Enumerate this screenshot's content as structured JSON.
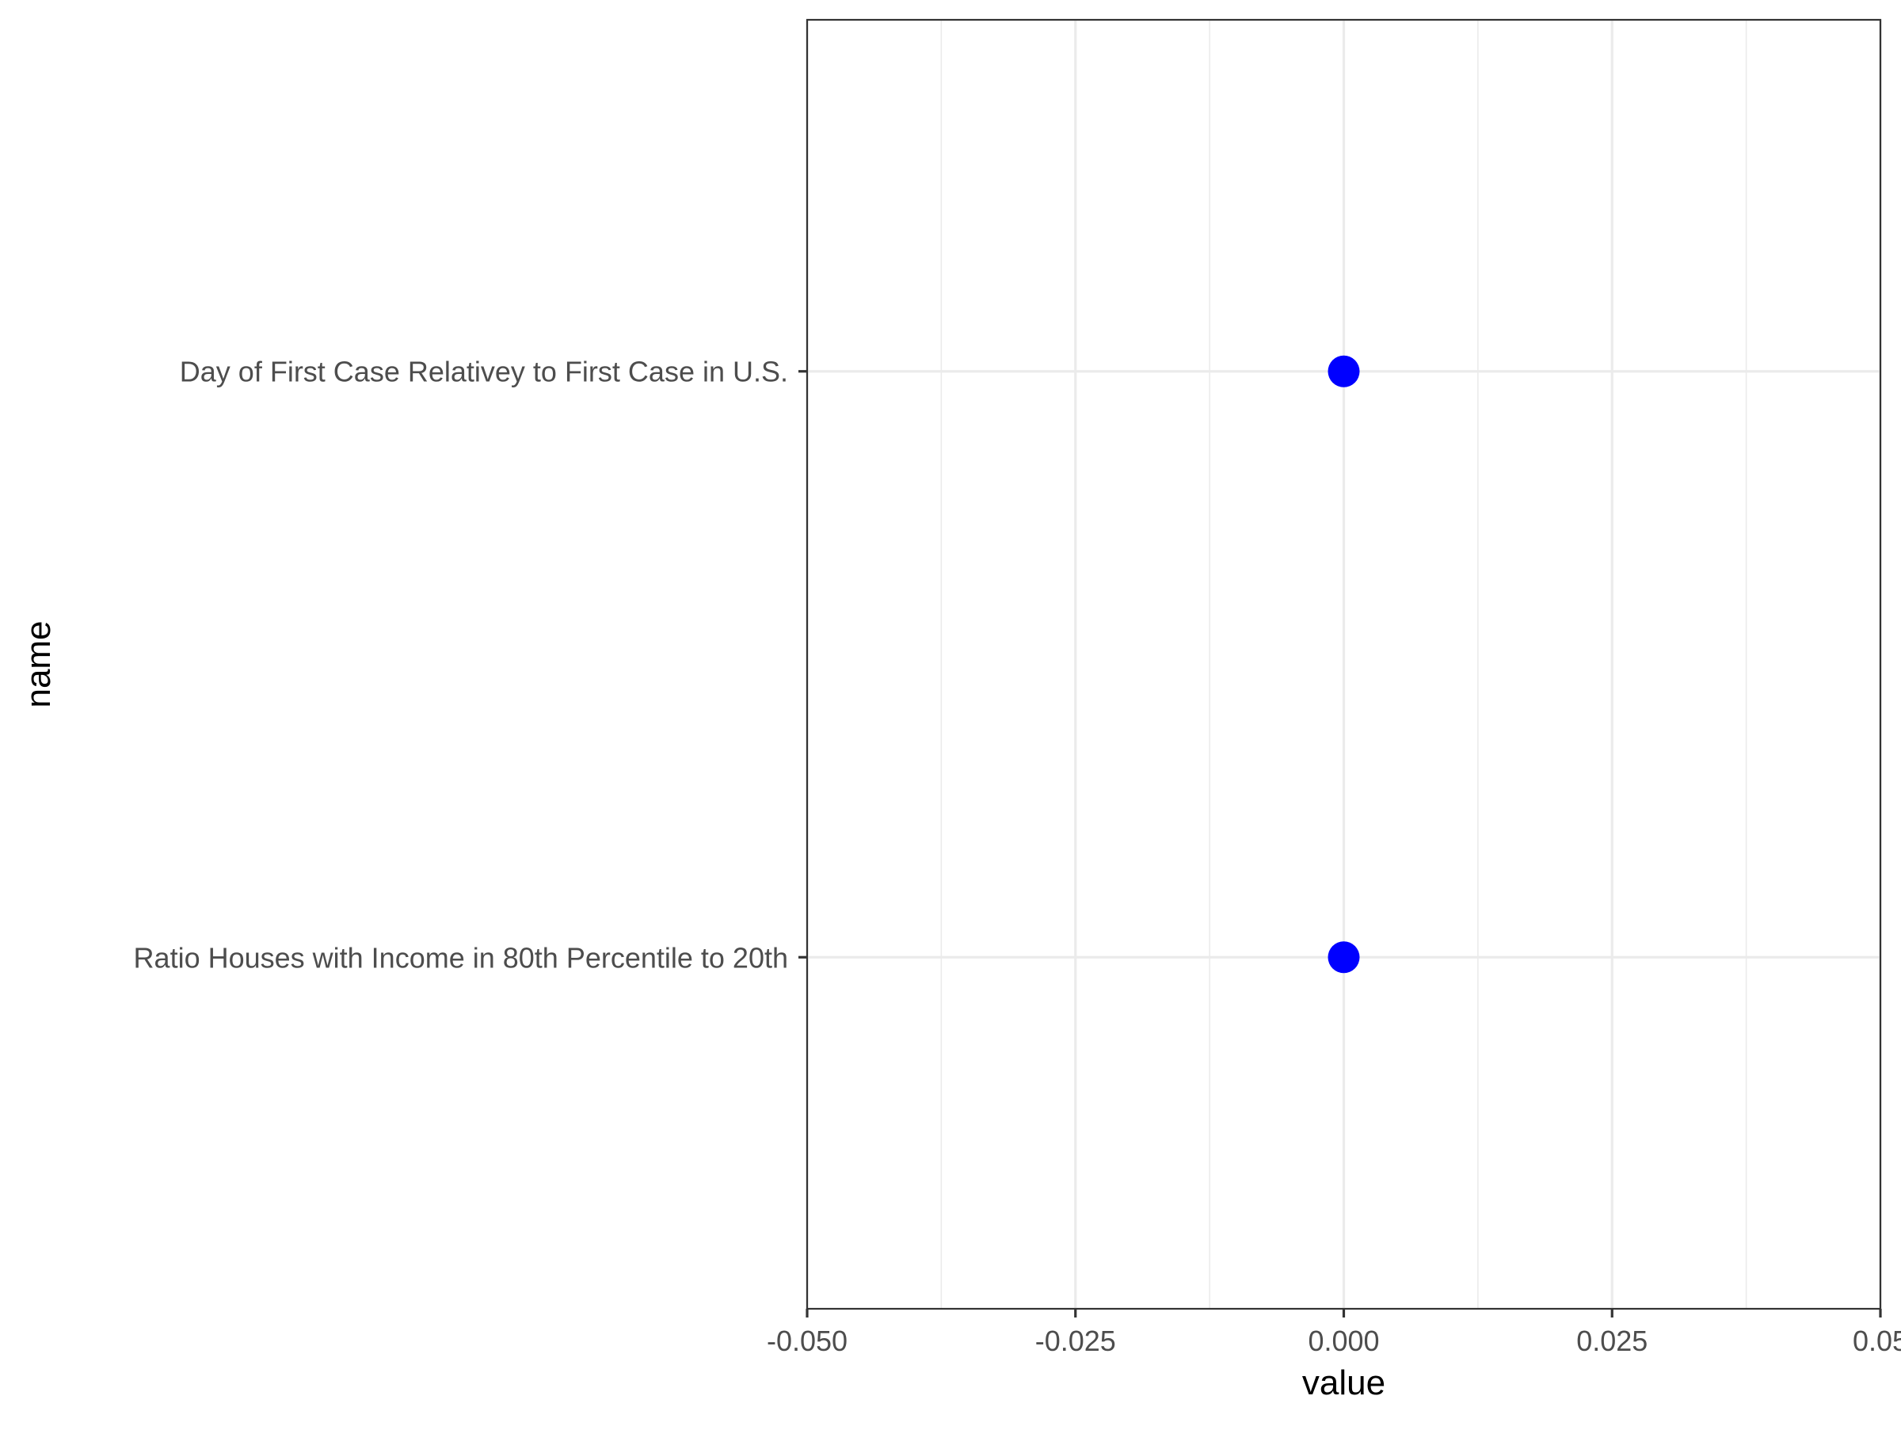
{
  "chart_data": {
    "type": "scatter",
    "title": "",
    "xlabel": "value",
    "ylabel": "name",
    "xlim": [
      -0.05,
      0.05
    ],
    "x_ticks": [
      -0.05,
      -0.025,
      0.0,
      0.025,
      0.05
    ],
    "x_tick_labels": [
      "-0.050",
      "-0.025",
      "0.000",
      "0.025",
      "0.05"
    ],
    "categories": [
      "Day of First Case Relativey to First Case in U.S.",
      "Ratio Houses with Income in 80th Percentile to 20th"
    ],
    "points": [
      {
        "name": "Day of First Case Relativey to First Case in U.S.",
        "value": 0.0
      },
      {
        "name": "Ratio Houses with Income in 80th Percentile to 20th",
        "value": 0.0
      }
    ],
    "grid": true,
    "point_color": "#0000ff"
  }
}
